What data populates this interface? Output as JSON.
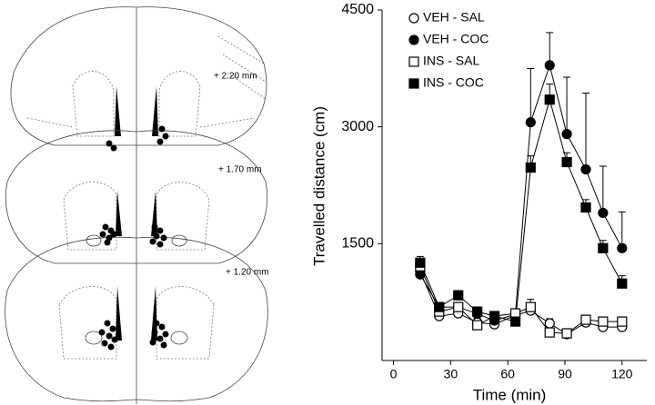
{
  "atlas": {
    "sections": [
      {
        "label": "+ 2.20 mm"
      },
      {
        "label": "+ 1.70 mm"
      },
      {
        "label": "+ 1.20 mm"
      }
    ]
  },
  "chart_data": {
    "type": "line",
    "x": [
      14,
      24,
      34,
      44,
      53,
      64,
      72,
      82,
      91,
      101,
      110,
      120
    ],
    "series": [
      {
        "name": "VEH - SAL",
        "color": "#000000",
        "marker": "circle",
        "filled": false,
        "values": [
          1140,
          570,
          605,
          488,
          465,
          581,
          640,
          477,
          337,
          488,
          430,
          430
        ],
        "errors": [
          60,
          40,
          60,
          60,
          40,
          40,
          100,
          60,
          50,
          60,
          60,
          60
        ]
      },
      {
        "name": "VEH - COC",
        "color": "#000000",
        "marker": "circle",
        "filled": true,
        "values": [
          1105,
          686,
          686,
          600,
          512,
          593,
          3058,
          3790,
          2907,
          2453,
          1895,
          1442
        ],
        "errors": [
          80,
          60,
          60,
          60,
          60,
          60,
          690,
          420,
          730,
          980,
          600,
          465
        ]
      },
      {
        "name": "INS - SAL",
        "color": "#000000",
        "marker": "square",
        "filled": false,
        "values": [
          1209,
          628,
          686,
          453,
          570,
          605,
          686,
          360,
          349,
          523,
          500,
          500
        ],
        "errors": [
          60,
          60,
          60,
          50,
          60,
          60,
          100,
          60,
          60,
          60,
          60,
          60
        ]
      },
      {
        "name": "INS - COC",
        "color": "#000000",
        "marker": "square",
        "filled": true,
        "values": [
          1256,
          686,
          837,
          628,
          570,
          500,
          2477,
          3349,
          2547,
          1965,
          1442,
          988
        ],
        "errors": [
          80,
          60,
          60,
          60,
          60,
          60,
          150,
          200,
          120,
          100,
          100,
          100
        ]
      }
    ],
    "xlabel": "Time  (min)",
    "ylabel": "Travelled distance (cm)",
    "xlim": [
      -6,
      133
    ],
    "ylim": [
      0,
      4500
    ],
    "xticks": [
      0,
      30,
      60,
      90,
      120
    ],
    "yticks": [
      1500,
      3000,
      4500
    ],
    "legend": "upper left"
  }
}
